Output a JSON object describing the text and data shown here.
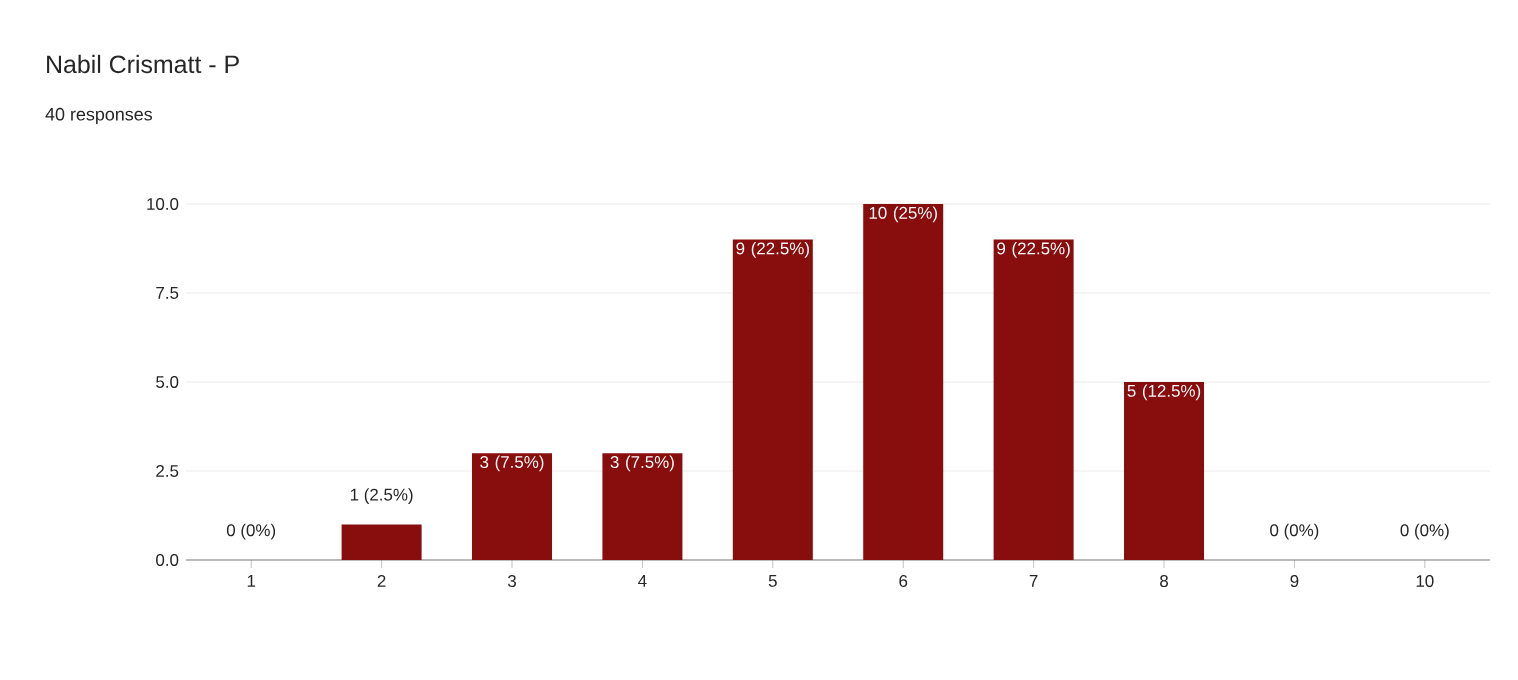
{
  "chart_data": {
    "type": "bar",
    "title": "Nabil Crismatt - P",
    "subtitle": "40 responses",
    "categories": [
      "1",
      "2",
      "3",
      "4",
      "5",
      "6",
      "7",
      "8",
      "9",
      "10"
    ],
    "values": [
      0,
      1,
      3,
      3,
      9,
      10,
      9,
      5,
      0,
      0
    ],
    "value_labels": [
      "0 (0%)",
      "1 (2.5%)",
      "3 (7.5%)",
      "3 (7.5%)",
      "9 (22.5%)",
      "10 (25%)",
      "9 (22.5%)",
      "5 (12.5%)",
      "0 (0%)",
      "0 (0%)"
    ],
    "color": "#880e0e",
    "ylim": [
      0,
      10
    ],
    "yticks": [
      {
        "value": 0,
        "label": "0.0"
      },
      {
        "value": 2.5,
        "label": "2.5"
      },
      {
        "value": 5,
        "label": "5.0"
      },
      {
        "value": 7.5,
        "label": "7.5"
      },
      {
        "value": 10,
        "label": "10.0"
      }
    ],
    "grid": "y"
  }
}
